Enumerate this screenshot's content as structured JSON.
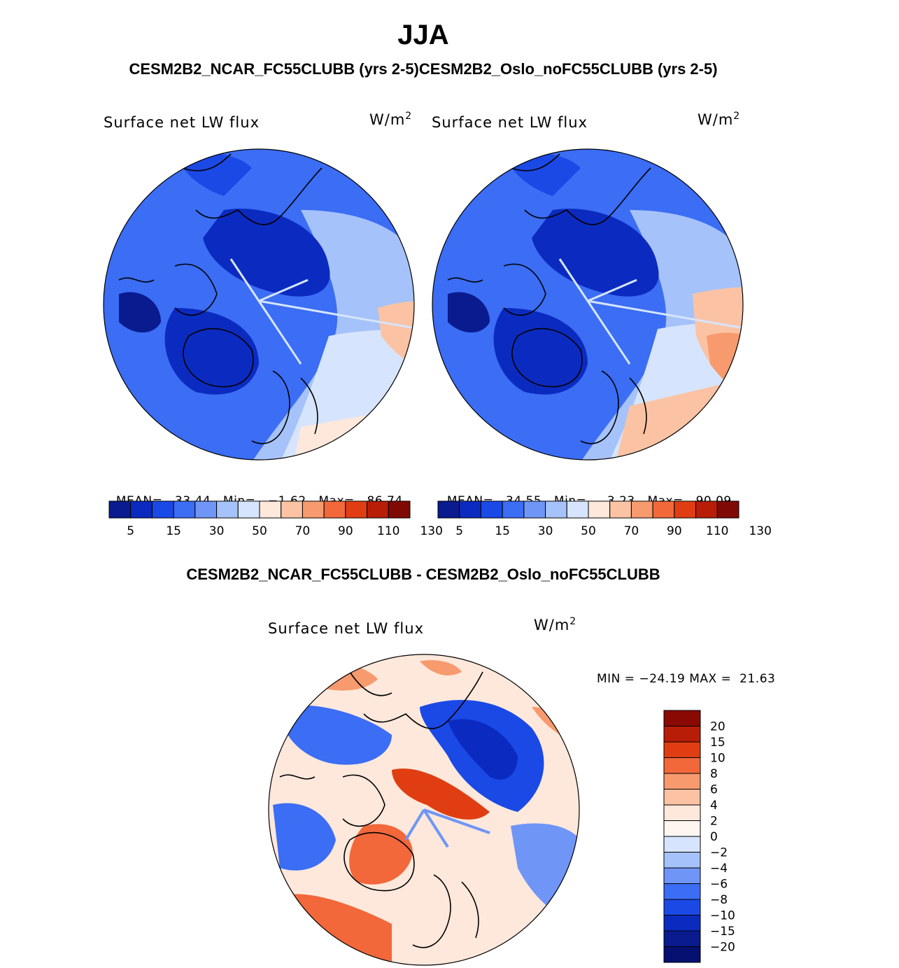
{
  "page": {
    "title": "JJA",
    "subtitle_top": "CESM2B2_NCAR_FC55CLUBB (yrs 2-5)CESM2B2_Oslo_noFC55CLUBB (yrs 2-5)",
    "subtitle_diff": "CESM2B2_NCAR_FC55CLUBB - CESM2B2_Oslo_noFC55CLUBB"
  },
  "chart_data": [
    {
      "type": "heatmap",
      "projection": "polar-stereographic",
      "case": "CESM2B2_NCAR_FC55CLUBB (yrs 2-5)",
      "variable": "Surface net LW flux",
      "units_base": "W/m",
      "units_exp": "2",
      "mean_label": "MEAN=",
      "mean": "33.44",
      "min_label": "Min=",
      "min": "−1.62",
      "max_label": "Max=",
      "max": "86.74",
      "colorbar_levels": [
        5,
        15,
        30,
        50,
        70,
        90,
        110,
        130
      ],
      "colorbar_ticks": [
        "5",
        "15",
        "30",
        "50",
        "70",
        "90",
        "110",
        "130"
      ],
      "colors": [
        "#0a1b8f",
        "#0b2bc0",
        "#1a49e6",
        "#3b6df5",
        "#6f95f7",
        "#a6c2fa",
        "#d6e5fd",
        "#fde8db",
        "#fbc3a4",
        "#f79a6e",
        "#f2683a",
        "#e03e12",
        "#b81e07",
        "#7f0a03"
      ]
    },
    {
      "type": "heatmap",
      "projection": "polar-stereographic",
      "case": "CESM2B2_Oslo_noFC55CLUBB (yrs 2-5)",
      "variable": "Surface net LW flux",
      "units_base": "W/m",
      "units_exp": "2",
      "mean_label": "MEAN=",
      "mean": "34.55",
      "min_label": "Min=",
      "min": "3.23",
      "max_label": "Max=",
      "max": "90.09",
      "colorbar_levels": [
        5,
        15,
        30,
        50,
        70,
        90,
        110,
        130
      ],
      "colorbar_ticks": [
        "5",
        "15",
        "30",
        "50",
        "70",
        "90",
        "110",
        "130"
      ],
      "colors": [
        "#0a1b8f",
        "#0b2bc0",
        "#1a49e6",
        "#3b6df5",
        "#6f95f7",
        "#a6c2fa",
        "#d6e5fd",
        "#fde8db",
        "#fbc3a4",
        "#f79a6e",
        "#f2683a",
        "#e03e12",
        "#b81e07",
        "#7f0a03"
      ]
    },
    {
      "type": "heatmap",
      "projection": "polar-stereographic",
      "case": "CESM2B2_NCAR_FC55CLUBB - CESM2B2_Oslo_noFC55CLUBB",
      "variable": "Surface net LW flux",
      "units_base": "W/m",
      "units_exp": "2",
      "minmax_text": "MIN = −24.19 MAX =  21.63",
      "min": "−24.19",
      "max": "21.63",
      "colorbar_ticks": [
        "20",
        "15",
        "10",
        "8",
        "6",
        "4",
        "2",
        "0",
        "−2",
        "−4",
        "−6",
        "−8",
        "−10",
        "−15",
        "−20"
      ],
      "colors": [
        "#8a0a03",
        "#b81e07",
        "#e03e12",
        "#f2683a",
        "#f79a6e",
        "#fbc3a4",
        "#fde8db",
        "#fef6f0",
        "#d6e5fd",
        "#a6c2fa",
        "#6f95f7",
        "#3b6df5",
        "#1a49e6",
        "#0b2bc0",
        "#0a1b8f",
        "#061070"
      ]
    }
  ]
}
